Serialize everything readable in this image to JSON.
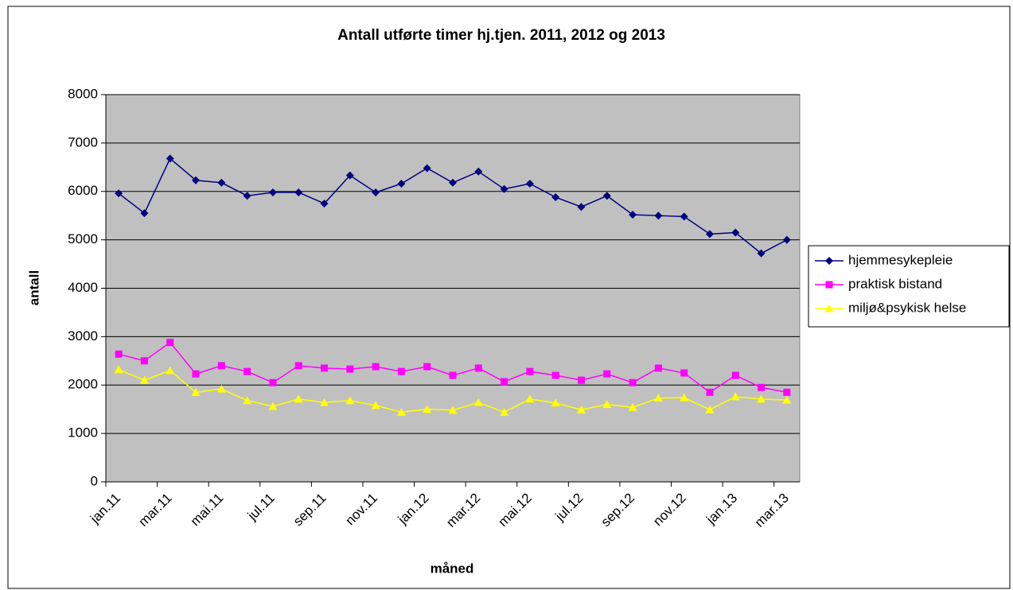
{
  "chart_data": {
    "type": "line",
    "title": "Antall utførte timer hj.tjen. 2011, 2012 og 2013",
    "x_label": "måned",
    "y_label": "antall",
    "categories": [
      "jan.11",
      null,
      "mar.11",
      null,
      "mai.11",
      null,
      "jul.11",
      null,
      "sep.11",
      null,
      "nov.11",
      null,
      "jan.12",
      null,
      "mar.12",
      null,
      "mai.12",
      null,
      "jul.12",
      null,
      "sep.12",
      null,
      "nov.12",
      null,
      "jan.13",
      null,
      "mar.13"
    ],
    "series": [
      {
        "name": "hjemmesykepleie",
        "color": "#000080",
        "marker": "diamond",
        "values": [
          5960,
          5550,
          6680,
          6230,
          6180,
          5910,
          5980,
          5980,
          5750,
          6330,
          5980,
          6160,
          6480,
          6180,
          6410,
          6050,
          6160,
          5880,
          5680,
          5910,
          5520,
          5500,
          5480,
          5120,
          5150,
          4720,
          5000
        ]
      },
      {
        "name": "praktisk bistand",
        "color": "#ff00ff",
        "marker": "square",
        "values": [
          2640,
          2500,
          2880,
          2230,
          2400,
          2280,
          2050,
          2400,
          2350,
          2330,
          2380,
          2280,
          2380,
          2200,
          2350,
          2070,
          2280,
          2200,
          2100,
          2230,
          2050,
          2350,
          2250,
          1850,
          2200,
          1950,
          1850
        ]
      },
      {
        "name": "miljø&psykisk helse",
        "color": "#ffff00",
        "marker": "triangle",
        "values": [
          2320,
          2100,
          2300,
          1850,
          1920,
          1680,
          1560,
          1710,
          1640,
          1680,
          1580,
          1440,
          1500,
          1480,
          1640,
          1440,
          1710,
          1630,
          1490,
          1600,
          1540,
          1730,
          1740,
          1490,
          1760,
          1710,
          1690
        ]
      }
    ],
    "ylim": [
      0,
      8000
    ],
    "yticks": [
      0,
      1000,
      2000,
      3000,
      4000,
      5000,
      6000,
      7000,
      8000
    ],
    "grid": true,
    "legend": "right",
    "plot_background": "#c0c0c0"
  }
}
